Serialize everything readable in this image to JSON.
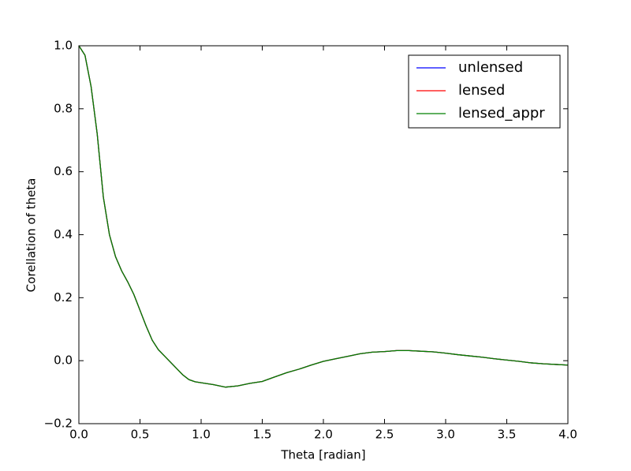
{
  "chart_data": {
    "type": "line",
    "xlabel": "Theta [radian]",
    "ylabel": "Corellation of theta",
    "x": [
      0,
      0.05,
      0.1,
      0.15,
      0.2,
      0.25,
      0.3,
      0.35,
      0.4,
      0.45,
      0.5,
      0.55,
      0.6,
      0.65,
      0.7,
      0.75,
      0.8,
      0.85,
      0.9,
      0.95,
      1.0,
      1.1,
      1.2,
      1.3,
      1.4,
      1.5,
      1.6,
      1.7,
      1.8,
      1.9,
      2.0,
      2.1,
      2.2,
      2.3,
      2.4,
      2.5,
      2.6,
      2.7,
      2.8,
      2.9,
      3.0,
      3.1,
      3.2,
      3.3,
      3.4,
      3.5,
      3.6,
      3.7,
      3.8,
      3.9,
      4.0
    ],
    "series": [
      {
        "name": "unlensed",
        "color": "#0000ff",
        "values": [
          1.0,
          0.97,
          0.87,
          0.72,
          0.52,
          0.4,
          0.33,
          0.285,
          0.25,
          0.21,
          0.16,
          0.11,
          0.065,
          0.035,
          0.015,
          -0.005,
          -0.025,
          -0.045,
          -0.06,
          -0.067,
          -0.07,
          -0.076,
          -0.084,
          -0.08,
          -0.072,
          -0.066,
          -0.052,
          -0.038,
          -0.027,
          -0.014,
          -0.002,
          0.006,
          0.014,
          0.022,
          0.027,
          0.029,
          0.032,
          0.032,
          0.03,
          0.028,
          0.024,
          0.019,
          0.015,
          0.011,
          0.006,
          0.002,
          -0.002,
          -0.007,
          -0.01,
          -0.012,
          -0.014
        ]
      },
      {
        "name": "lensed",
        "color": "#ff0000",
        "values": [
          1.0,
          0.97,
          0.87,
          0.72,
          0.52,
          0.4,
          0.33,
          0.285,
          0.25,
          0.21,
          0.16,
          0.11,
          0.065,
          0.035,
          0.015,
          -0.005,
          -0.025,
          -0.045,
          -0.06,
          -0.067,
          -0.07,
          -0.076,
          -0.084,
          -0.08,
          -0.072,
          -0.066,
          -0.052,
          -0.038,
          -0.027,
          -0.014,
          -0.002,
          0.006,
          0.014,
          0.022,
          0.027,
          0.029,
          0.032,
          0.032,
          0.03,
          0.028,
          0.024,
          0.019,
          0.015,
          0.011,
          0.006,
          0.002,
          -0.002,
          -0.007,
          -0.01,
          -0.012,
          -0.014
        ]
      },
      {
        "name": "lensed_appr",
        "color": "#008000",
        "values": [
          1.0,
          0.97,
          0.87,
          0.72,
          0.52,
          0.4,
          0.33,
          0.285,
          0.25,
          0.21,
          0.16,
          0.11,
          0.065,
          0.035,
          0.015,
          -0.005,
          -0.025,
          -0.045,
          -0.06,
          -0.067,
          -0.07,
          -0.076,
          -0.084,
          -0.08,
          -0.072,
          -0.066,
          -0.052,
          -0.038,
          -0.027,
          -0.014,
          -0.002,
          0.006,
          0.014,
          0.022,
          0.027,
          0.029,
          0.032,
          0.032,
          0.03,
          0.028,
          0.024,
          0.019,
          0.015,
          0.011,
          0.006,
          0.002,
          -0.002,
          -0.007,
          -0.01,
          -0.012,
          -0.014
        ]
      }
    ],
    "xlim": [
      0,
      4
    ],
    "xticks": [
      {
        "value": 0,
        "label": "0.0"
      },
      0.5,
      {
        "value": 1,
        "label": "1.0"
      },
      1.5,
      {
        "value": 2,
        "label": "2.0"
      },
      2.5,
      {
        "value": 3,
        "label": "3.0"
      },
      3.5,
      {
        "value": 4,
        "label": "4.0"
      }
    ],
    "ylim": [
      -0.2,
      1.0
    ],
    "yticks": [
      {
        "value": -0.2,
        "label": "−0.2"
      },
      {
        "value": 0,
        "label": "0.0"
      },
      0.2,
      0.4,
      0.6,
      0.8,
      {
        "value": 1,
        "label": "1.0"
      }
    ],
    "grid": false,
    "legend": "upper right"
  }
}
